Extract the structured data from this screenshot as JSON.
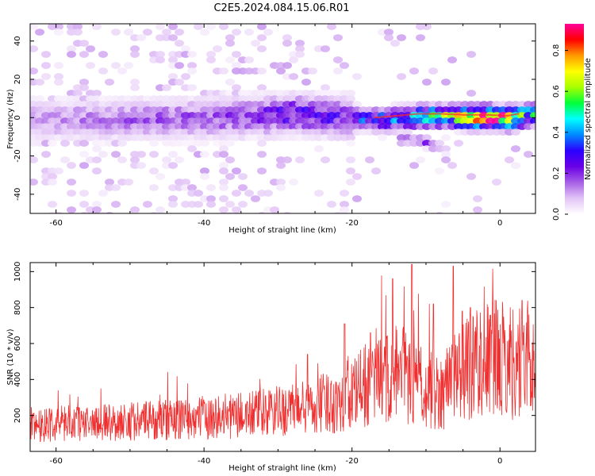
{
  "page": {
    "title": "C2E5.2024.084.15.06.R01"
  },
  "chart_data": [
    {
      "type": "heatmap",
      "title": "C2E5.2024.084.15.06.R01",
      "xlabel": "Height of straight line (km)",
      "ylabel": "Frequency (Hz)",
      "xlim": [
        -63.5,
        4.8
      ],
      "ylim": [
        -50,
        49
      ],
      "x_ticks": [
        "-60",
        "-40",
        "-20",
        "0"
      ],
      "y_ticks": [
        "40",
        "20",
        "0",
        "-20",
        "-40"
      ],
      "colorbar": {
        "label": "Normalized spectral amplitude",
        "range": [
          0,
          0.93
        ],
        "ticks": [
          "0.0",
          "0.2",
          "0.4",
          "0.6",
          "0.8"
        ],
        "colors": [
          "#ffffff",
          "#e2c4f6",
          "#a760e6",
          "#6a00e6",
          "#2b00ff",
          "#0088ff",
          "#00ffff",
          "#00ff3a",
          "#a8ff00",
          "#ffff00",
          "#ff9900",
          "#ff0000",
          "#ff0099"
        ]
      },
      "ridge": [
        {
          "x": -63,
          "y": 0.0,
          "amp": 0.12
        },
        {
          "x": -58,
          "y": 0.5,
          "amp": 0.14
        },
        {
          "x": -53,
          "y": 0.0,
          "amp": 0.15
        },
        {
          "x": -48,
          "y": 0.8,
          "amp": 0.17
        },
        {
          "x": -43,
          "y": 0.5,
          "amp": 0.18
        },
        {
          "x": -38,
          "y": 1.0,
          "amp": 0.19
        },
        {
          "x": -33,
          "y": 2.0,
          "amp": 0.22
        },
        {
          "x": -28,
          "y": 3.5,
          "amp": 0.28
        },
        {
          "x": -24,
          "y": 2.0,
          "amp": 0.24
        },
        {
          "x": -20,
          "y": 1.0,
          "amp": 0.3
        },
        {
          "x": -17,
          "y": 0.0,
          "amp": 0.38
        },
        {
          "x": -14,
          "y": 1.0,
          "amp": 0.42
        },
        {
          "x": -11,
          "y": 2.0,
          "amp": 0.5
        },
        {
          "x": -8,
          "y": 2.0,
          "amp": 0.58
        },
        {
          "x": -5,
          "y": 1.5,
          "amp": 0.78
        },
        {
          "x": -2,
          "y": 1.5,
          "amp": 0.92
        },
        {
          "x": 1,
          "y": 1.0,
          "amp": 0.8
        },
        {
          "x": 4,
          "y": 3.0,
          "amp": 0.45
        }
      ],
      "secondary_ridge": [
        {
          "x": -12,
          "y": -10,
          "amp": 0.18
        },
        {
          "x": -10,
          "y": -12,
          "amp": 0.22
        },
        {
          "x": -8,
          "y": -15,
          "amp": 0.1
        }
      ]
    },
    {
      "type": "line",
      "xlabel": "Height of straight line (km)",
      "ylabel": "SNR (10 * v/v)",
      "xlim": [
        -63.5,
        4.8
      ],
      "ylim": [
        0,
        1050
      ],
      "x_ticks": [
        "-60",
        "-40",
        "-20",
        "0"
      ],
      "y_ticks": [
        "200",
        "400",
        "600",
        "800",
        "1000"
      ],
      "color": "#f03030",
      "trend": [
        {
          "x": -63,
          "y": 150
        },
        {
          "x": -55,
          "y": 160
        },
        {
          "x": -45,
          "y": 175
        },
        {
          "x": -35,
          "y": 200
        },
        {
          "x": -28,
          "y": 230
        },
        {
          "x": -22,
          "y": 280
        },
        {
          "x": -18,
          "y": 360
        },
        {
          "x": -14,
          "y": 430
        },
        {
          "x": -11,
          "y": 370
        },
        {
          "x": -8,
          "y": 330
        },
        {
          "x": -5,
          "y": 480
        },
        {
          "x": -2,
          "y": 520
        },
        {
          "x": 2,
          "y": 500
        },
        {
          "x": 4.8,
          "y": 520
        }
      ],
      "spikes": [
        {
          "x": -14.5,
          "y": 960
        },
        {
          "x": -11.9,
          "y": 1040
        },
        {
          "x": -9.0,
          "y": 820
        },
        {
          "x": -6.3,
          "y": 1030
        },
        {
          "x": -4.0,
          "y": 800
        },
        {
          "x": 3.0,
          "y": 840
        },
        {
          "x": -21.0,
          "y": 710
        },
        {
          "x": -17.5,
          "y": 660
        },
        {
          "x": -26.0,
          "y": 540
        }
      ]
    }
  ]
}
